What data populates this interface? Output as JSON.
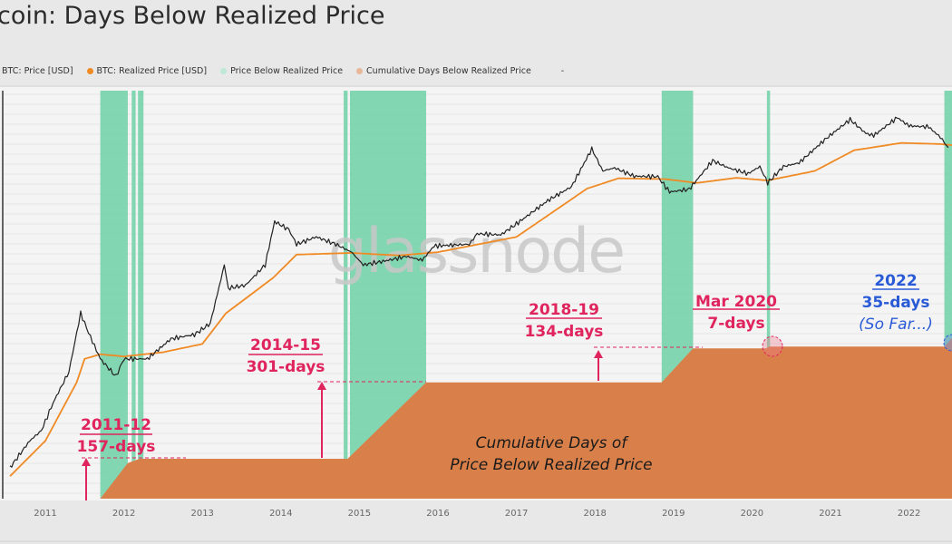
{
  "title": "coin: Days Below Realized Price",
  "legend": [
    {
      "label": "BTC: Price [USD]",
      "color": "#222222"
    },
    {
      "label": "BTC: Realized Price [USD]",
      "color": "#f08a24"
    },
    {
      "label": "Price Below Realized Price",
      "color": "#bfe8d6"
    },
    {
      "label": "Cumulative Days Below Realized Price",
      "color": "#e9b79a"
    },
    {
      "label": "-",
      "color": ""
    }
  ],
  "watermark": "glassnode",
  "colors": {
    "price": "#222222",
    "realized": "#f08a24",
    "below": "#6fd0a6",
    "cumulative": "#d9804a",
    "annotation": "#e0245e",
    "annotation_2022": "#2a5bd7"
  },
  "annotations": {
    "a2011": {
      "title": "2011-12",
      "days": "157-days"
    },
    "a2014": {
      "title": "2014-15",
      "days": "301-days"
    },
    "a2018": {
      "title": "2018-19",
      "days": "134-days"
    },
    "a2020": {
      "title": "Mar 2020",
      "days": "7-days"
    },
    "a2022": {
      "title": "2022",
      "days": "35-days",
      "note": "(So Far...)"
    },
    "cumulative_label": [
      "Cumulative Days of",
      "Price Below Realized Price"
    ]
  },
  "chart_data": {
    "type": "line",
    "y_scale": "log",
    "grid": true,
    "legend_position": "top-left",
    "x_tick_labels": [
      "2011",
      "2012",
      "2013",
      "2014",
      "2015",
      "2016",
      "2017",
      "2018",
      "2019",
      "2020",
      "2021",
      "2022"
    ],
    "series": [
      {
        "name": "BTC: Price [USD]",
        "points": [
          [
            2010.55,
            0.07
          ],
          [
            2010.8,
            0.2
          ],
          [
            2010.95,
            0.3
          ],
          [
            2011.1,
            0.9
          ],
          [
            2011.3,
            3
          ],
          [
            2011.45,
            30
          ],
          [
            2011.55,
            14
          ],
          [
            2011.7,
            5
          ],
          [
            2011.9,
            2.5
          ],
          [
            2012.0,
            5
          ],
          [
            2012.3,
            5
          ],
          [
            2012.6,
            11
          ],
          [
            2012.9,
            13
          ],
          [
            2013.1,
            20
          ],
          [
            2013.28,
            200
          ],
          [
            2013.33,
            80
          ],
          [
            2013.55,
            90
          ],
          [
            2013.8,
            200
          ],
          [
            2013.92,
            1100
          ],
          [
            2014.1,
            800
          ],
          [
            2014.2,
            450
          ],
          [
            2014.45,
            600
          ],
          [
            2014.7,
            450
          ],
          [
            2014.9,
            330
          ],
          [
            2015.05,
            200
          ],
          [
            2015.3,
            230
          ],
          [
            2015.6,
            280
          ],
          [
            2015.8,
            240
          ],
          [
            2015.95,
            420
          ],
          [
            2016.4,
            450
          ],
          [
            2016.5,
            680
          ],
          [
            2016.8,
            650
          ],
          [
            2017.0,
            1000
          ],
          [
            2017.4,
            2500
          ],
          [
            2017.7,
            4300
          ],
          [
            2017.96,
            19000
          ],
          [
            2018.1,
            8000
          ],
          [
            2018.25,
            9000
          ],
          [
            2018.5,
            6500
          ],
          [
            2018.8,
            6400
          ],
          [
            2018.95,
            3500
          ],
          [
            2019.2,
            3900
          ],
          [
            2019.5,
            12000
          ],
          [
            2019.7,
            9000
          ],
          [
            2019.95,
            7200
          ],
          [
            2020.1,
            9500
          ],
          [
            2020.2,
            5000
          ],
          [
            2020.4,
            9500
          ],
          [
            2020.6,
            11000
          ],
          [
            2020.95,
            29000
          ],
          [
            2021.25,
            60000
          ],
          [
            2021.45,
            35000
          ],
          [
            2021.55,
            32000
          ],
          [
            2021.85,
            65000
          ],
          [
            2022.0,
            47000
          ],
          [
            2022.25,
            45000
          ],
          [
            2022.4,
            30000
          ],
          [
            2022.5,
            20000
          ]
        ]
      },
      {
        "name": "BTC: Realized Price [USD]",
        "points": [
          [
            2010.55,
            0.05
          ],
          [
            2011.0,
            0.2
          ],
          [
            2011.4,
            2
          ],
          [
            2011.5,
            5
          ],
          [
            2011.7,
            6
          ],
          [
            2012.0,
            5.5
          ],
          [
            2012.5,
            6.5
          ],
          [
            2013.0,
            9
          ],
          [
            2013.3,
            30
          ],
          [
            2013.9,
            120
          ],
          [
            2014.2,
            300
          ],
          [
            2014.9,
            320
          ],
          [
            2015.5,
            290
          ],
          [
            2016.0,
            330
          ],
          [
            2017.0,
            600
          ],
          [
            2017.9,
            4000
          ],
          [
            2018.3,
            6000
          ],
          [
            2018.9,
            5800
          ],
          [
            2019.3,
            5000
          ],
          [
            2019.8,
            6100
          ],
          [
            2020.2,
            5500
          ],
          [
            2020.8,
            8000
          ],
          [
            2021.3,
            18000
          ],
          [
            2021.9,
            24000
          ],
          [
            2022.4,
            23000
          ],
          [
            2022.55,
            22000
          ]
        ]
      },
      {
        "name": "Cumulative Days Below Realized Price",
        "points": [
          [
            2011.7,
            0
          ],
          [
            2012.05,
            140
          ],
          [
            2012.2,
            157
          ],
          [
            2014.85,
            157
          ],
          [
            2015.85,
            458
          ],
          [
            2018.85,
            458
          ],
          [
            2019.25,
            592
          ],
          [
            2020.18,
            592
          ],
          [
            2020.22,
            599
          ],
          [
            2022.45,
            599
          ],
          [
            2022.55,
            634
          ]
        ]
      }
    ],
    "below_periods": [
      [
        2011.7,
        2012.05
      ],
      [
        2012.1,
        2012.15
      ],
      [
        2012.18,
        2012.25
      ],
      [
        2014.8,
        2014.85
      ],
      [
        2014.88,
        2015.85
      ],
      [
        2018.85,
        2019.25
      ],
      [
        2020.19,
        2020.23
      ],
      [
        2022.45,
        2022.56
      ]
    ]
  }
}
